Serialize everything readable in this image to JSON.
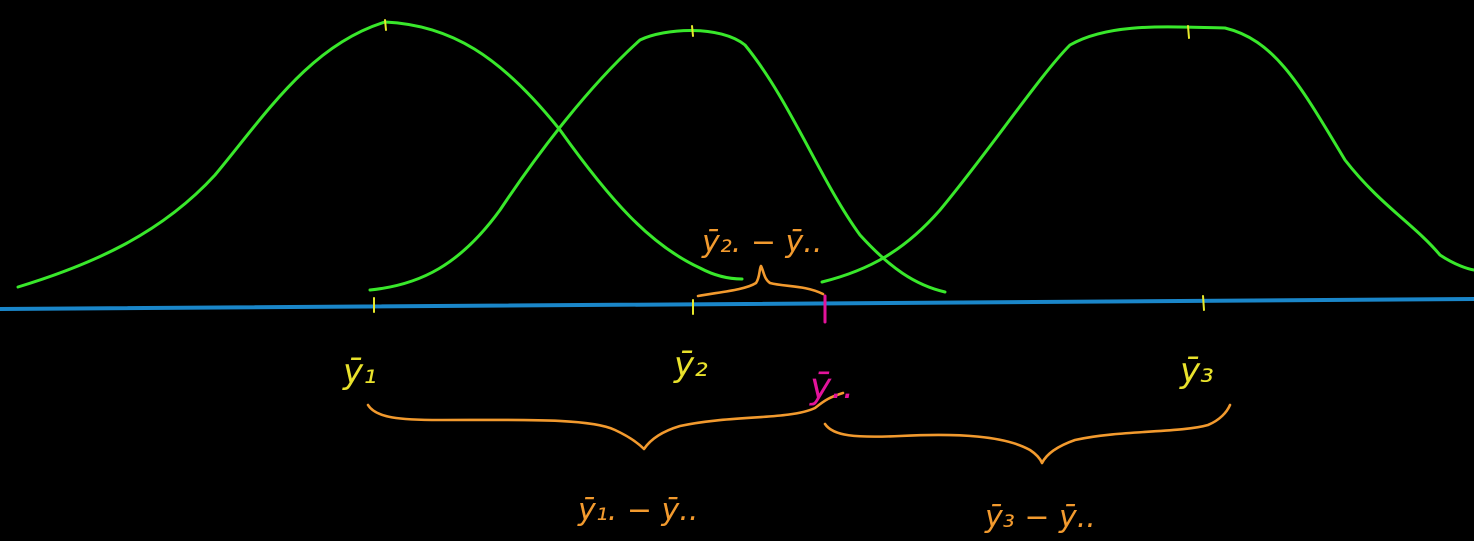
{
  "colors": {
    "background": "#000000",
    "curves": "#39e82b",
    "axis": "#1a86c9",
    "group_means": "#e9e22c",
    "grand_mean": "#e3139b",
    "differences": "#f29a2e"
  },
  "labels": {
    "y1": "ȳ₁",
    "y2": "ȳ₂",
    "y3": "ȳ₃",
    "grand": "ȳ..",
    "d1": "ȳ₁. − ȳ..",
    "d2": "ȳ₂. − ȳ..",
    "d3": "ȳ₃ − ȳ.."
  }
}
